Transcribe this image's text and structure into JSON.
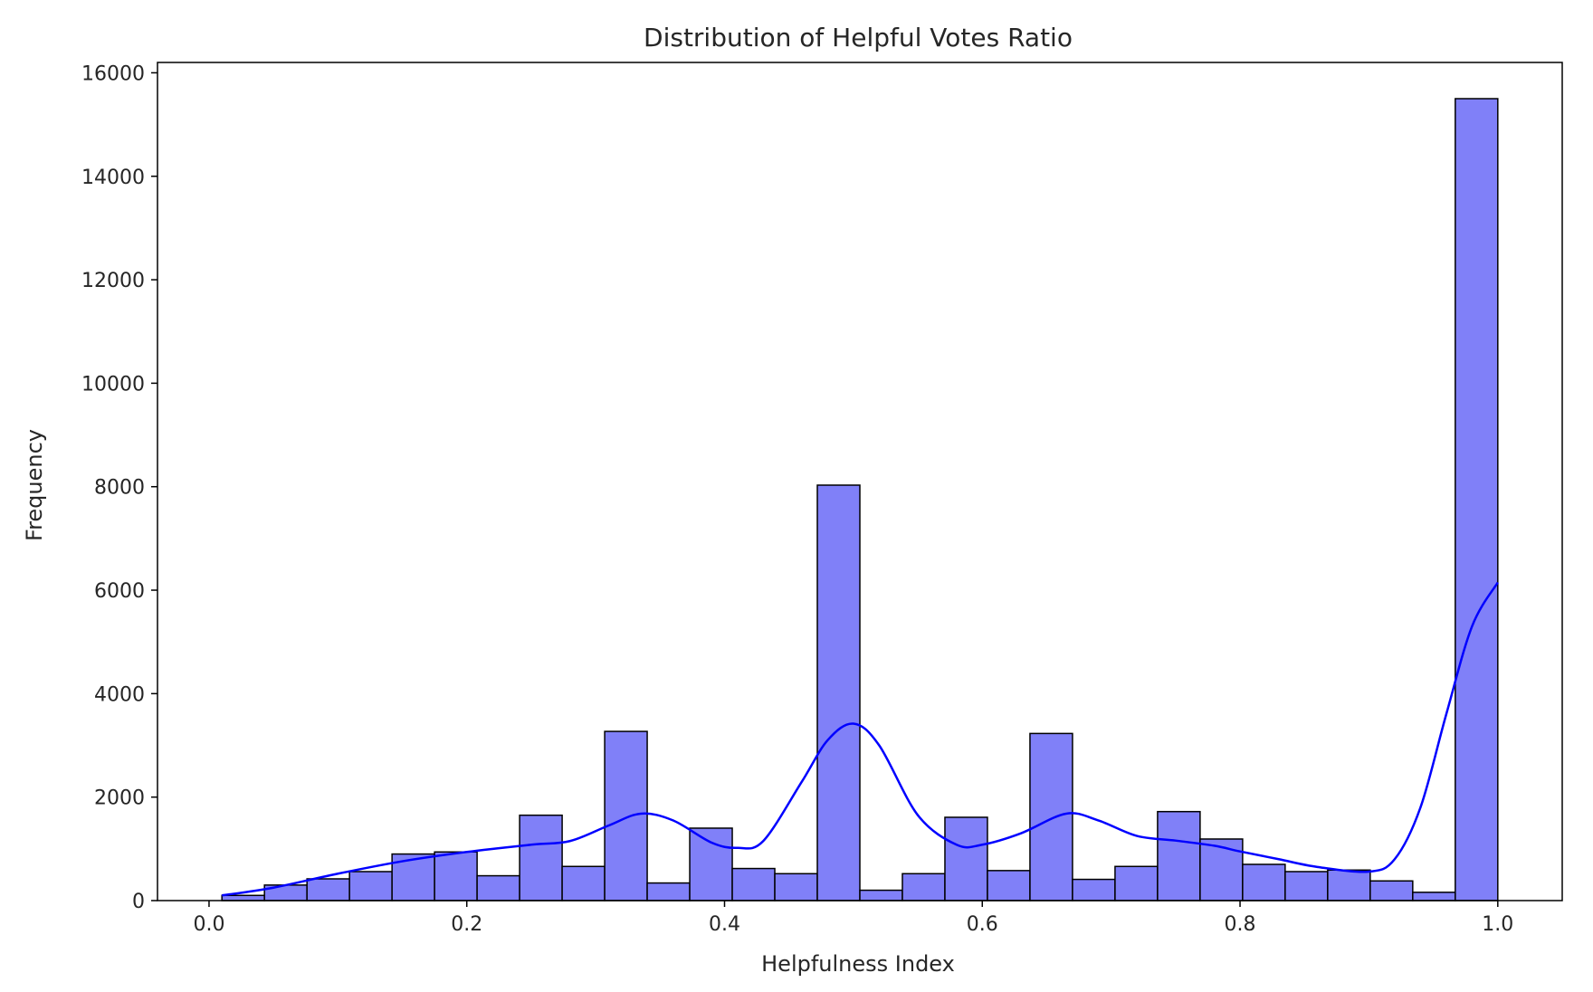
{
  "chart_data": {
    "type": "histogram",
    "title": "Distribution of Helpful Votes Ratio",
    "xlabel": "Helpfulness Index",
    "ylabel": "Frequency",
    "xlim": [
      -0.04,
      1.05
    ],
    "ylim": [
      0,
      16200
    ],
    "xticks": [
      0.0,
      0.2,
      0.4,
      0.6,
      0.8,
      1.0
    ],
    "xtick_labels": [
      "0.0",
      "0.2",
      "0.4",
      "0.6",
      "0.8",
      "1.0"
    ],
    "yticks": [
      0,
      2000,
      4000,
      6000,
      8000,
      10000,
      12000,
      14000,
      16000
    ],
    "ytick_labels": [
      "0",
      "2000",
      "4000",
      "6000",
      "8000",
      "10000",
      "12000",
      "14000",
      "16000"
    ],
    "bar_color": "#8080f8",
    "bar_edge_color": "#000000",
    "kde_color": "#0000ff",
    "grid": false,
    "bins": [
      {
        "start": 0.01,
        "end": 0.043,
        "count": 100
      },
      {
        "start": 0.043,
        "end": 0.076,
        "count": 300
      },
      {
        "start": 0.076,
        "end": 0.109,
        "count": 420
      },
      {
        "start": 0.109,
        "end": 0.142,
        "count": 560
      },
      {
        "start": 0.142,
        "end": 0.175,
        "count": 900
      },
      {
        "start": 0.175,
        "end": 0.208,
        "count": 940
      },
      {
        "start": 0.208,
        "end": 0.241,
        "count": 480
      },
      {
        "start": 0.241,
        "end": 0.274,
        "count": 1650
      },
      {
        "start": 0.274,
        "end": 0.307,
        "count": 660
      },
      {
        "start": 0.307,
        "end": 0.34,
        "count": 3270
      },
      {
        "start": 0.34,
        "end": 0.373,
        "count": 340
      },
      {
        "start": 0.373,
        "end": 0.406,
        "count": 1400
      },
      {
        "start": 0.406,
        "end": 0.439,
        "count": 620
      },
      {
        "start": 0.439,
        "end": 0.472,
        "count": 520
      },
      {
        "start": 0.472,
        "end": 0.505,
        "count": 8030
      },
      {
        "start": 0.505,
        "end": 0.538,
        "count": 200
      },
      {
        "start": 0.538,
        "end": 0.571,
        "count": 520
      },
      {
        "start": 0.571,
        "end": 0.604,
        "count": 1610
      },
      {
        "start": 0.604,
        "end": 0.637,
        "count": 580
      },
      {
        "start": 0.637,
        "end": 0.67,
        "count": 3230
      },
      {
        "start": 0.67,
        "end": 0.703,
        "count": 410
      },
      {
        "start": 0.703,
        "end": 0.736,
        "count": 660
      },
      {
        "start": 0.736,
        "end": 0.769,
        "count": 1720
      },
      {
        "start": 0.769,
        "end": 0.802,
        "count": 1190
      },
      {
        "start": 0.802,
        "end": 0.835,
        "count": 700
      },
      {
        "start": 0.835,
        "end": 0.868,
        "count": 560
      },
      {
        "start": 0.868,
        "end": 0.901,
        "count": 590
      },
      {
        "start": 0.901,
        "end": 0.934,
        "count": 380
      },
      {
        "start": 0.934,
        "end": 0.967,
        "count": 160
      },
      {
        "start": 0.967,
        "end": 1.0,
        "count": 15500
      }
    ],
    "kde": {
      "x": [
        0.01,
        0.05,
        0.1,
        0.15,
        0.2,
        0.25,
        0.28,
        0.31,
        0.335,
        0.36,
        0.39,
        0.41,
        0.43,
        0.46,
        0.48,
        0.5,
        0.52,
        0.55,
        0.58,
        0.6,
        0.63,
        0.665,
        0.69,
        0.72,
        0.75,
        0.78,
        0.8,
        0.83,
        0.86,
        0.9,
        0.92,
        0.94,
        0.96,
        0.98,
        1.0
      ],
      "y": [
        100,
        250,
        520,
        760,
        940,
        1080,
        1150,
        1450,
        1680,
        1550,
        1120,
        1020,
        1150,
        2300,
        3100,
        3420,
        3000,
        1650,
        1080,
        1080,
        1300,
        1680,
        1550,
        1250,
        1160,
        1060,
        950,
        800,
        650,
        560,
        800,
        1800,
        3600,
        5300,
        6150
      ]
    }
  }
}
